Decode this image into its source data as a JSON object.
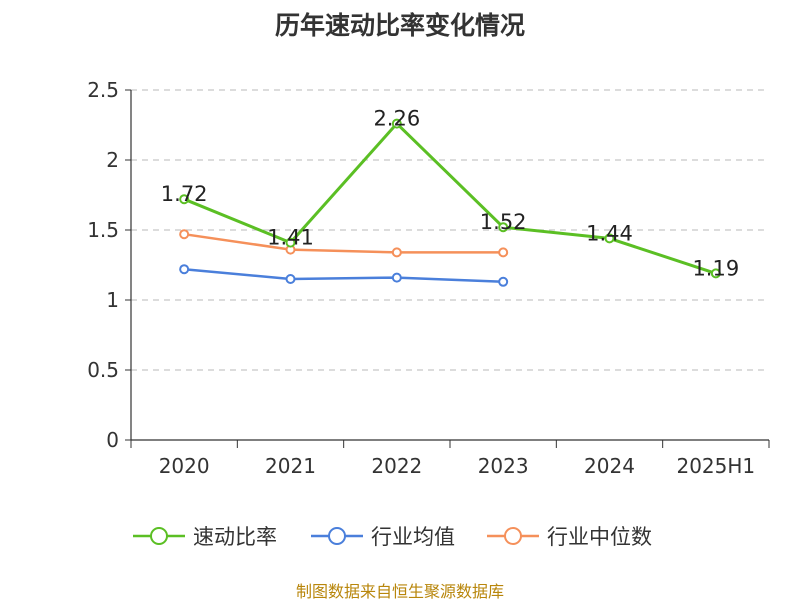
{
  "title": "历年速动比率变化情况",
  "source_note": "制图数据来自恒生聚源数据库",
  "colors": {
    "quick_ratio": "#5bbf24",
    "industry_avg": "#4a7fdb",
    "industry_median": "#f5905a",
    "grid": "#c8c8c8",
    "axis": "#333333",
    "text": "#333333",
    "source": "#b8860b"
  },
  "chart_data": {
    "type": "line",
    "title": "历年速动比率变化情况",
    "categories": [
      "2020",
      "2021",
      "2022",
      "2023",
      "2024",
      "2025H1"
    ],
    "y_ticks": [
      "0",
      "0.5",
      "1",
      "1.5",
      "2",
      "2.5"
    ],
    "ylim": [
      0,
      2.5
    ],
    "grid": true,
    "legend_position": "bottom",
    "series": [
      {
        "name": "速动比率",
        "color": "#5bbf24",
        "values": [
          1.72,
          1.41,
          2.26,
          1.52,
          1.44,
          1.19
        ],
        "labels": [
          "1.72",
          "1.41",
          "2.26",
          "1.52",
          "1.44",
          "1.19"
        ]
      },
      {
        "name": "行业均值",
        "color": "#4a7fdb",
        "values": [
          1.22,
          1.15,
          1.16,
          1.13,
          null,
          null
        ]
      },
      {
        "name": "行业中位数",
        "color": "#f5905a",
        "values": [
          1.47,
          1.36,
          1.34,
          1.34,
          null,
          null
        ]
      }
    ]
  }
}
